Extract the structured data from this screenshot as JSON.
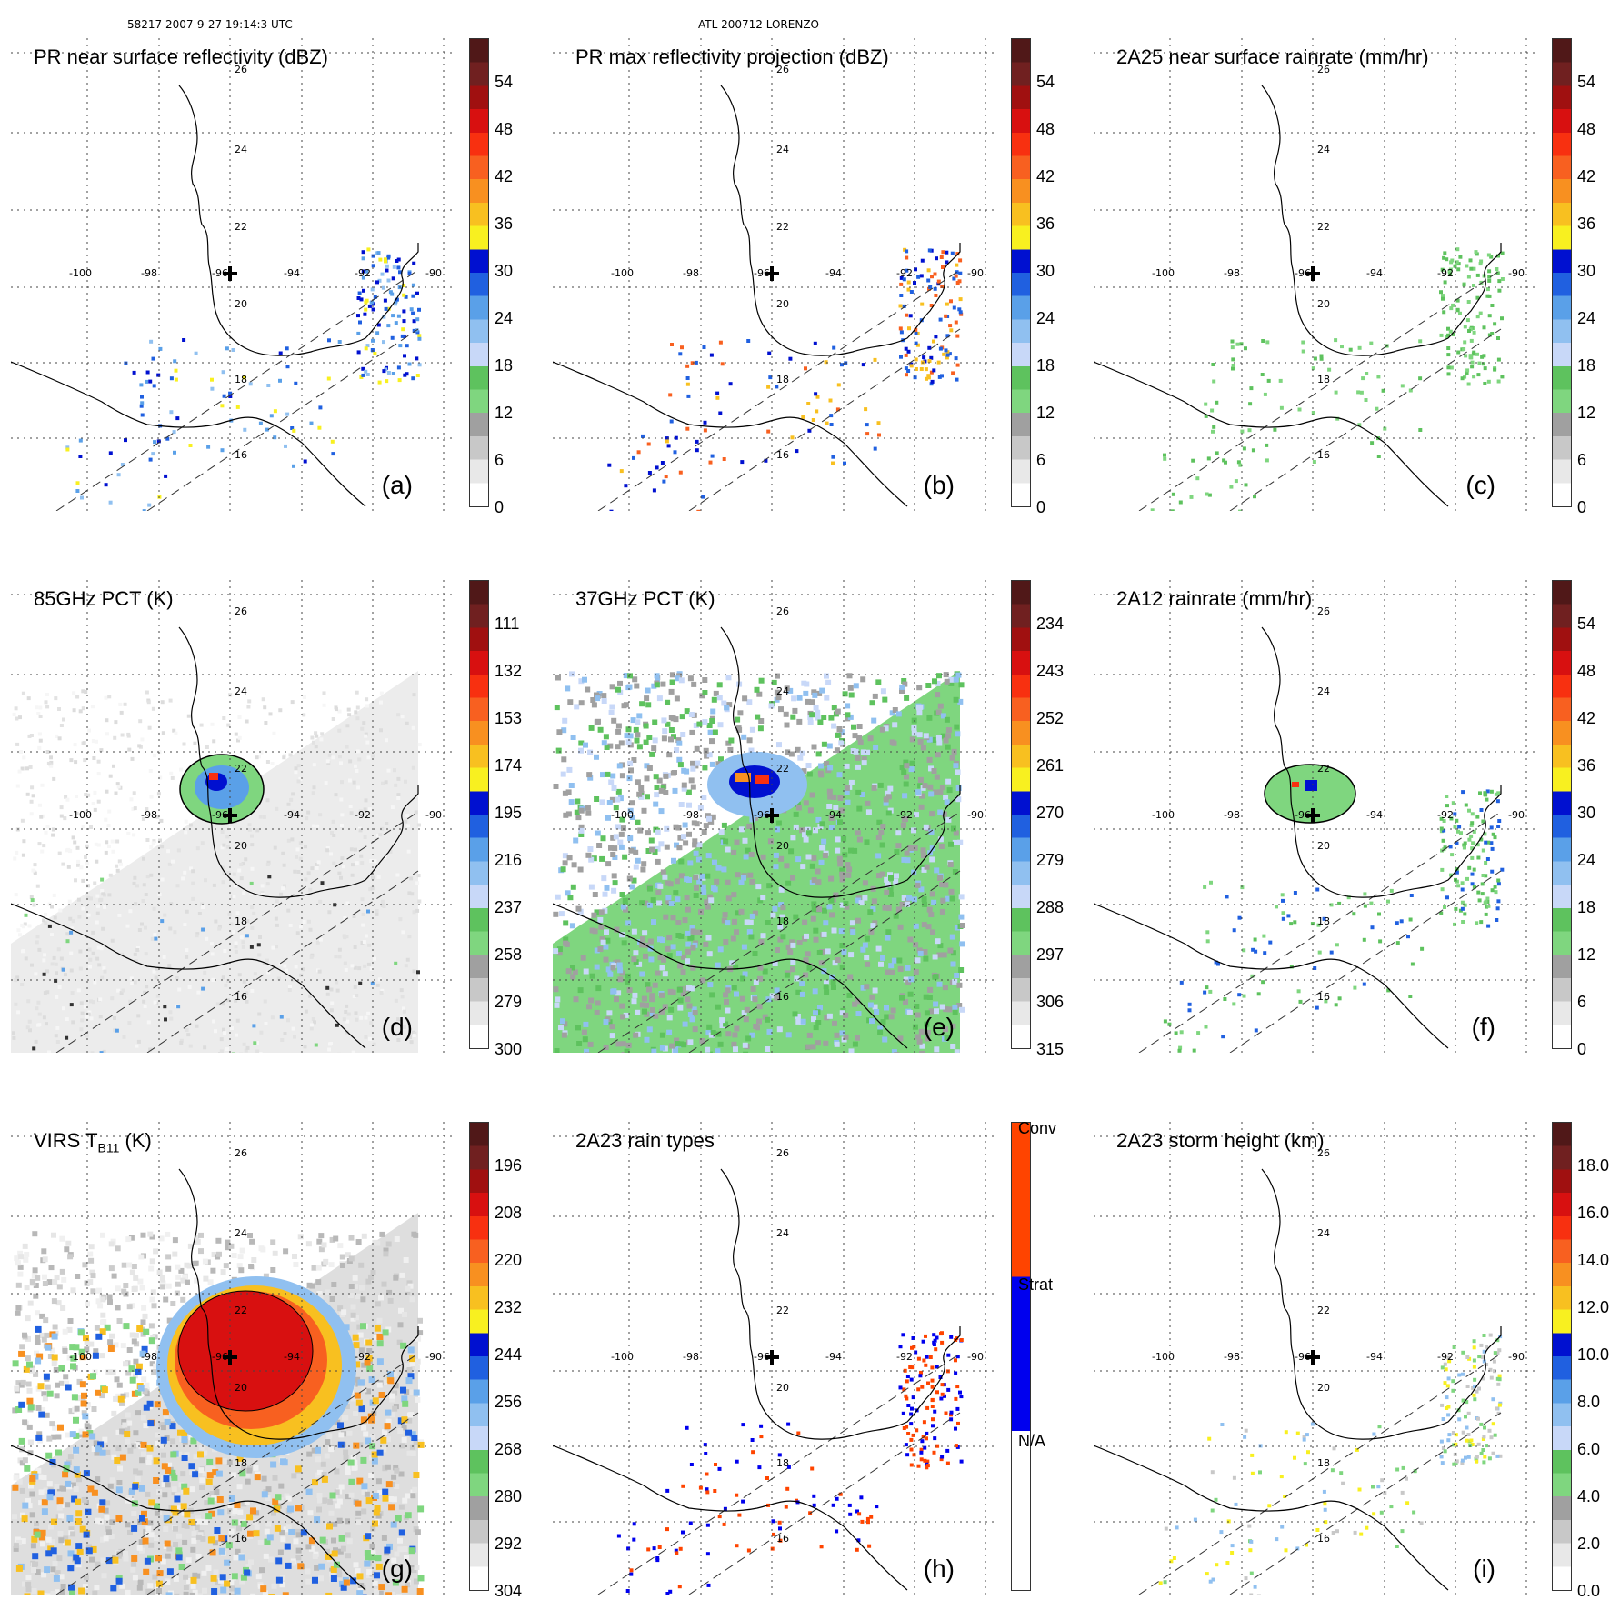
{
  "header": {
    "left": "58217 2007-9-27 19:14:3 UTC",
    "center": "ATL 200712 LORENZO"
  },
  "map": {
    "lon_labels": [
      "-100",
      "-98",
      "-96",
      "-94",
      "-92",
      "-90"
    ],
    "lat_labels_top": [
      "26",
      "24",
      "22",
      "20",
      "18",
      "16"
    ],
    "lat_labels_row1": [
      "24",
      "22",
      "20",
      "18",
      "16"
    ]
  },
  "panels": [
    {
      "id": "a",
      "title": "PR near surface reflectivity (dBZ)",
      "label": "(a)",
      "ticks": [
        "54",
        "48",
        "42",
        "36",
        "30",
        "24",
        "18",
        "12",
        "6",
        "0"
      ]
    },
    {
      "id": "b",
      "title": "PR max reflectivity projection (dBZ)",
      "label": "(b)",
      "ticks": [
        "54",
        "48",
        "42",
        "36",
        "30",
        "24",
        "18",
        "12",
        "6",
        "0"
      ]
    },
    {
      "id": "c",
      "title": "2A25 near surface rainrate (mm/hr)",
      "label": "(c)",
      "ticks": [
        "54",
        "48",
        "42",
        "36",
        "30",
        "24",
        "18",
        "12",
        "6",
        "0"
      ]
    },
    {
      "id": "d",
      "title": "85GHz PCT (K)",
      "label": "(d)",
      "ticks": [
        "111",
        "132",
        "153",
        "174",
        "195",
        "216",
        "237",
        "258",
        "279",
        "300"
      ]
    },
    {
      "id": "e",
      "title": "37GHz PCT (K)",
      "label": "(e)",
      "ticks": [
        "234",
        "243",
        "252",
        "261",
        "270",
        "279",
        "288",
        "297",
        "306",
        "315"
      ]
    },
    {
      "id": "f",
      "title": "2A12 rainrate (mm/hr)",
      "label": "(f)",
      "ticks": [
        "54",
        "48",
        "42",
        "36",
        "30",
        "24",
        "18",
        "12",
        "6",
        "0"
      ]
    },
    {
      "id": "g",
      "title": "VIRS T",
      "title_sub": "B11",
      "title_tail": " (K)",
      "label": "(g)",
      "ticks": [
        "196",
        "208",
        "220",
        "232",
        "244",
        "256",
        "268",
        "280",
        "292",
        "304"
      ]
    },
    {
      "id": "h",
      "title": "2A23 rain types",
      "label": "(h)",
      "ticks": [
        "Conv",
        "Strat",
        "N/A"
      ]
    },
    {
      "id": "i",
      "title": "2A23 storm height (km)",
      "label": "(i)",
      "ticks": [
        "18.0",
        "16.0",
        "14.0",
        "12.0",
        "10.0",
        "8.0",
        "6.0",
        "4.0",
        "2.0",
        "0.0"
      ]
    }
  ],
  "colors": {
    "scale": [
      "#ffffff",
      "#e8e8e8",
      "#c8c8c8",
      "#a0a0a0",
      "#7fd67f",
      "#5ec25e",
      "#c8d8f8",
      "#90c0f0",
      "#5aa0e8",
      "#2060e0",
      "#0010d0",
      "#f8f020",
      "#f8c020",
      "#f89020",
      "#f86020",
      "#f83010",
      "#d81010",
      "#a01010",
      "#702020",
      "#501818"
    ],
    "rain_types": {
      "conv": "#ff4400",
      "strat": "#0000ee",
      "na": "#ffffff"
    }
  }
}
